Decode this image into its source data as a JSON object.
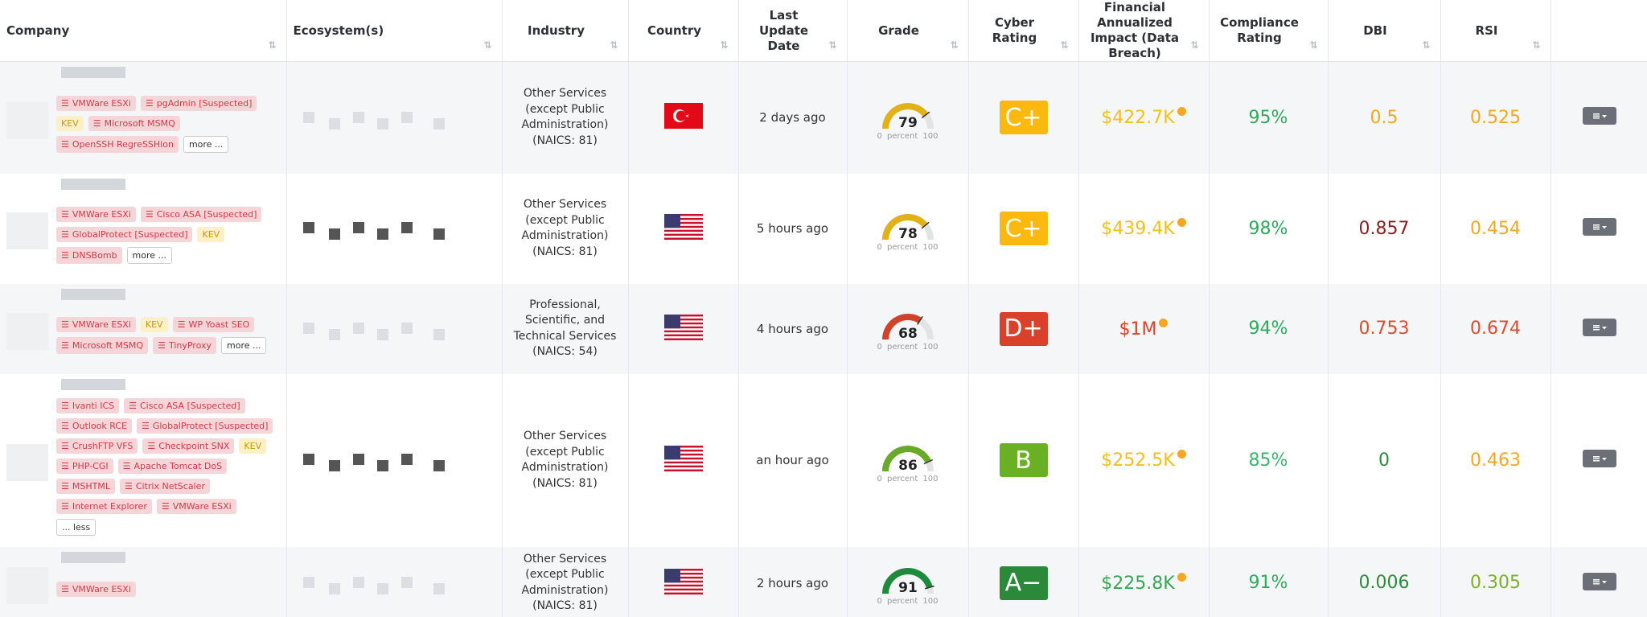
{
  "header": {
    "columns": [
      "Company",
      "Ecosystem(s)",
      "Industry",
      "Country",
      "Last Update Date",
      "Grade",
      "Cyber Rating",
      "Financial Annualized Impact (Data Breach)",
      "Compliance Rating",
      "DBI",
      "RSI"
    ]
  },
  "gauge": {
    "min": 0,
    "unit": "percent",
    "max": 100
  },
  "table": {
    "rows": [
      {
        "tags": [
          {
            "label": "VMWare ESXi",
            "color": "red"
          },
          {
            "label": "pgAdmin [Suspected]",
            "color": "red"
          },
          {
            "label": "KEV",
            "color": "yellow"
          },
          {
            "label": "Microsoft MSMQ",
            "color": "red"
          },
          {
            "label": "OpenSSH RegreSSHion",
            "color": "red"
          }
        ],
        "toggle": "more ...",
        "industry": "Other Services (except Public Administration) (NAICS: 81)",
        "updated": "2 days ago",
        "grade": 79,
        "rating": "C+",
        "financial": "$422.7K",
        "compliance": "95%",
        "dbi": "0.5",
        "rsi": "0.525",
        "colors": {
          "grade": "#e2b118",
          "rating": "#fbb910",
          "financial": "#f2c01c",
          "compliance": "#2eaa5c",
          "dbi": "#f5a623",
          "rsi": "#f5a623"
        }
      },
      {
        "tags": [
          {
            "label": "VMWare ESXi",
            "color": "red"
          },
          {
            "label": "Cisco ASA [Suspected]",
            "color": "red"
          },
          {
            "label": "GlobalProtect [Suspected]",
            "color": "red"
          },
          {
            "label": "KEV",
            "color": "yellow"
          },
          {
            "label": "DNSBomb",
            "color": "red"
          }
        ],
        "toggle": "more ...",
        "industry": "Other Services (except Public Administration) (NAICS: 81)",
        "updated": "5 hours ago",
        "grade": 78,
        "rating": "C+",
        "financial": "$439.4K",
        "compliance": "98%",
        "dbi": "0.857",
        "rsi": "0.454",
        "colors": {
          "grade": "#e2b118",
          "rating": "#fbb910",
          "financial": "#f2c01c",
          "compliance": "#2eaa5c",
          "dbi": "#8b1d1d",
          "rsi": "#f5a623"
        }
      },
      {
        "tags": [
          {
            "label": "VMWare ESXi",
            "color": "red"
          },
          {
            "label": "KEV",
            "color": "yellow"
          },
          {
            "label": "WP Yoast SEO",
            "color": "red"
          },
          {
            "label": "Microsoft MSMQ",
            "color": "red"
          },
          {
            "label": "TinyProxy",
            "color": "red"
          }
        ],
        "toggle": "more ...",
        "industry": "Professional, Scientific, and Technical Services (NAICS: 54)",
        "updated": "4 hours ago",
        "grade": 68,
        "rating": "D+",
        "financial": "$1M",
        "compliance": "94%",
        "dbi": "0.753",
        "rsi": "0.674",
        "colors": {
          "grade": "#d0432b",
          "rating": "#d9412b",
          "financial": "#d9412b",
          "compliance": "#2eaa5c",
          "dbi": "#e04a2f",
          "rsi": "#e04a2f"
        }
      },
      {
        "tags": [
          {
            "label": "Ivanti ICS",
            "color": "red"
          },
          {
            "label": "Cisco ASA [Suspected]",
            "color": "red"
          },
          {
            "label": "Outlook RCE",
            "color": "red"
          },
          {
            "label": "GlobalProtect [Suspected]",
            "color": "red"
          },
          {
            "label": "CrushFTP VFS",
            "color": "red"
          },
          {
            "label": "Checkpoint SNX",
            "color": "red"
          },
          {
            "label": "KEV",
            "color": "yellow"
          },
          {
            "label": "PHP-CGI",
            "color": "red"
          },
          {
            "label": "Apache Tomcat DoS",
            "color": "red"
          },
          {
            "label": "MSHTML",
            "color": "red"
          },
          {
            "label": "Citrix NetScaler",
            "color": "red"
          },
          {
            "label": "Internet Explorer",
            "color": "red"
          },
          {
            "label": "VMWare ESXi",
            "color": "red"
          }
        ],
        "toggle": "... less",
        "industry": "Other Services (except Public Administration) (NAICS: 81)",
        "updated": "an hour ago",
        "grade": 86,
        "rating": "B",
        "financial": "$252.5K",
        "compliance": "85%",
        "dbi": "0",
        "rsi": "0.463",
        "colors": {
          "grade": "#6aaa2a",
          "rating": "#6ab023",
          "financial": "#f2c01c",
          "compliance": "#3bb56a",
          "dbi": "#2e8b3a",
          "rsi": "#f5a623"
        }
      },
      {
        "tags": [
          {
            "label": "VMWare ESXi",
            "color": "red"
          }
        ],
        "industry": "Other Services (except Public Administration) (NAICS: 81)",
        "updated": "2 hours ago",
        "grade": 91,
        "rating": "A−",
        "financial": "$225.8K",
        "compliance": "91%",
        "dbi": "0.006",
        "rsi": "0.305",
        "colors": {
          "grade": "#1f8a3c",
          "rating": "#2a8a3a",
          "financial": "#3aa655",
          "compliance": "#2eaa5c",
          "dbi": "#2e8b3a",
          "rsi": "#7ab02a"
        }
      }
    ]
  }
}
